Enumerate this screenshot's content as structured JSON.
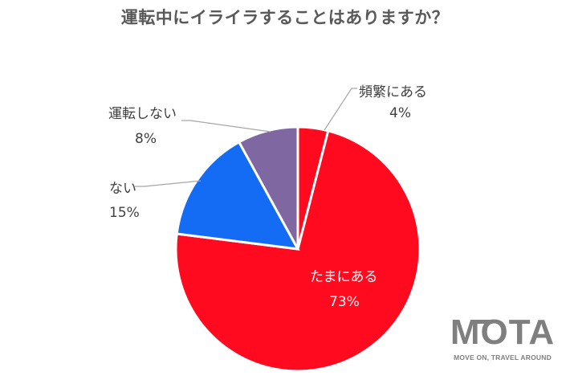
{
  "chart_data": {
    "type": "pie",
    "title": "運転中にイライラすることはありますか？",
    "categories": [
      "頻繁にある",
      "たまにある",
      "ない",
      "運転しない"
    ],
    "values": [
      4,
      73,
      15,
      8
    ],
    "unit": "%",
    "colors": [
      "#ff0a1e",
      "#ff0a1e",
      "#146cf5",
      "#7f67a2"
    ],
    "start_angle_deg": 0,
    "direction": "clockwise",
    "labels": [
      {
        "name": "頻繁にある",
        "value": "4%"
      },
      {
        "name": "たまにある",
        "value": "73%"
      },
      {
        "name": "ない",
        "value": "15%"
      },
      {
        "name": "運転しない",
        "value": "8%"
      }
    ],
    "legend": "none",
    "data_labels": "category and percentage with leader lines"
  },
  "logo": {
    "brand": "MOTA",
    "tagline": "MOVE ON, TRAVEL AROUND"
  }
}
